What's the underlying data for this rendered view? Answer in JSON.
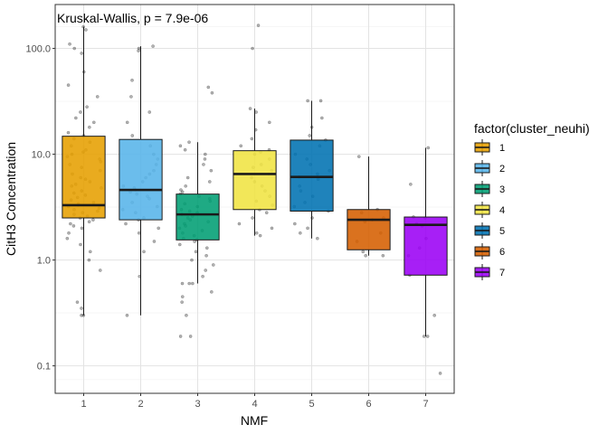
{
  "chart_data": {
    "type": "box",
    "title": "",
    "annotation": "Kruskal-Wallis, p = 7.9e-06",
    "xlabel": "NMF",
    "ylabel": "CitH3 Concentration",
    "y_scale": "log10",
    "ylim": [
      0.055,
      260
    ],
    "y_ticks": [
      0.1,
      1.0,
      10.0,
      100.0
    ],
    "y_tick_labels": [
      "0.1",
      "1.0",
      "10.0",
      "100.0"
    ],
    "categories": [
      "1",
      "2",
      "3",
      "4",
      "5",
      "6",
      "7"
    ],
    "grid": true,
    "legend": {
      "title": "factor(cluster_neuhi)",
      "position": "right",
      "entries": [
        "1",
        "2",
        "3",
        "4",
        "5",
        "6",
        "7"
      ]
    },
    "colors": [
      "#E69F00",
      "#56B4E9",
      "#009E73",
      "#F0E442",
      "#0072B2",
      "#D55E00",
      "#9B00F5"
    ],
    "boxes": [
      {
        "category": "1",
        "whisker_low": 0.3,
        "q1": 2.5,
        "median": 3.3,
        "q3": 14.8,
        "whisker_high": 160
      },
      {
        "category": "2",
        "whisker_low": 0.3,
        "q1": 2.4,
        "median": 4.6,
        "q3": 13.8,
        "whisker_high": 105
      },
      {
        "category": "3",
        "whisker_low": 0.6,
        "q1": 1.55,
        "median": 2.7,
        "q3": 4.2,
        "whisker_high": 13.0
      },
      {
        "category": "4",
        "whisker_low": 1.7,
        "q1": 3.0,
        "median": 6.5,
        "q3": 10.8,
        "whisker_high": 27
      },
      {
        "category": "5",
        "whisker_low": 1.6,
        "q1": 2.9,
        "median": 6.1,
        "q3": 13.6,
        "whisker_high": 32
      },
      {
        "category": "6",
        "whisker_low": 1.1,
        "q1": 1.25,
        "median": 2.4,
        "q3": 3.0,
        "whisker_high": 9.5
      },
      {
        "category": "7",
        "whisker_low": 0.19,
        "q1": 0.72,
        "median": 2.15,
        "q3": 2.55,
        "whisker_high": 11.5
      }
    ],
    "points": [
      {
        "category": "1",
        "y": [
          160,
          150,
          110,
          100,
          90,
          60,
          45,
          35,
          28,
          25,
          22,
          20,
          18,
          16,
          15,
          14,
          13,
          12,
          11,
          10.5,
          10,
          9.5,
          9,
          8.5,
          8,
          7.5,
          7,
          6.5,
          6,
          5.8,
          5.5,
          5.2,
          5,
          4.8,
          4.5,
          4.3,
          4.1,
          3.9,
          3.7,
          3.5,
          3.4,
          3.3,
          3.2,
          3.1,
          3.0,
          2.9,
          2.8,
          2.7,
          2.6,
          2.5,
          2.4,
          2.3,
          2.2,
          2.1,
          2.0,
          1.8,
          1.6,
          1.4,
          1.2,
          1.0,
          0.8,
          0.4,
          0.35,
          0.3,
          0.3
        ]
      },
      {
        "category": "2",
        "y": [
          105,
          100,
          95,
          50,
          35,
          25,
          20,
          15,
          12,
          10,
          9,
          8,
          7,
          6.5,
          6,
          5.5,
          5,
          4.8,
          4.6,
          4.4,
          4.2,
          4,
          3.8,
          3.5,
          3.2,
          3,
          2.8,
          2.5,
          2.4,
          2.2,
          2.0,
          1.8,
          1.5,
          1.2,
          0.7,
          0.3
        ]
      },
      {
        "category": "3",
        "y": [
          43,
          38,
          13,
          12,
          11,
          10,
          9,
          8,
          7,
          6,
          5.5,
          5,
          4.6,
          4.4,
          4.2,
          4,
          3.8,
          3.6,
          3.4,
          3.2,
          3,
          2.9,
          2.8,
          2.7,
          2.6,
          2.5,
          2.4,
          2.3,
          2.2,
          2.1,
          2.0,
          1.9,
          1.8,
          1.7,
          1.6,
          1.55,
          1.5,
          1.4,
          1.3,
          1.2,
          1.1,
          1.0,
          0.9,
          0.8,
          0.7,
          0.6,
          0.6,
          0.6,
          0.5,
          0.45,
          0.4,
          0.3,
          0.19,
          0.19
        ]
      },
      {
        "category": "4",
        "y": [
          165,
          100,
          27,
          25,
          20,
          17,
          14,
          12,
          11,
          10.5,
          10,
          9,
          8,
          7.5,
          7,
          6.5,
          6,
          5.5,
          5,
          4.5,
          4,
          3.6,
          3.3,
          3.0,
          2.8,
          2.5,
          2.2,
          2.0,
          1.8,
          1.7
        ]
      },
      {
        "category": "5",
        "y": [
          32,
          32,
          22,
          18,
          15,
          13.6,
          12,
          10,
          9,
          8,
          7,
          6.5,
          6.1,
          5.8,
          5,
          4.5,
          4,
          3.5,
          3.2,
          2.9,
          2.5,
          2.2,
          2.0,
          1.8,
          1.6
        ]
      },
      {
        "category": "6",
        "y": [
          9.5,
          3.0,
          2.8,
          2.5,
          2.4,
          2.3,
          1.8,
          1.5,
          1.2,
          1.1,
          1.1
        ]
      },
      {
        "category": "7",
        "y": [
          11.5,
          5.2,
          2.55,
          2.5,
          2.2,
          2.1,
          1.6,
          1.3,
          1.1,
          0.72,
          0.3,
          0.19,
          0.19,
          0.085
        ]
      }
    ]
  }
}
